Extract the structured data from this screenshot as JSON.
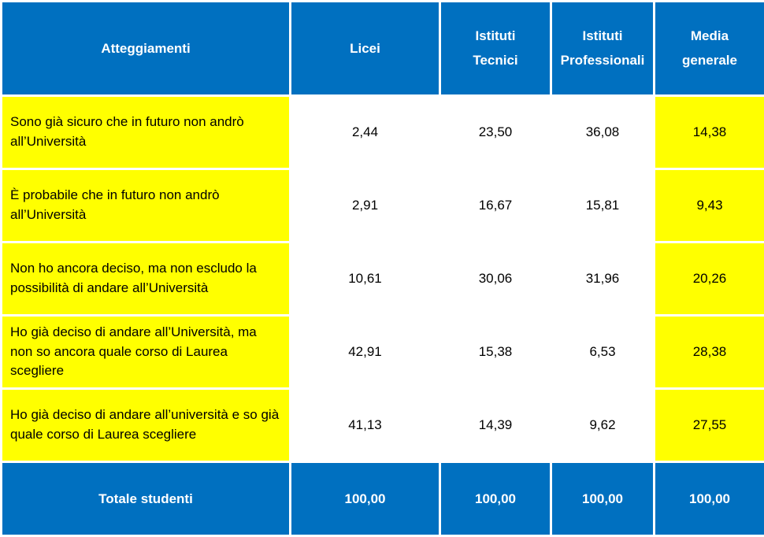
{
  "table": {
    "header": [
      "Atteggiamenti",
      "Licei",
      "Istituti Tecnici",
      "Istituti Professionali",
      "Media generale"
    ],
    "rows": [
      [
        "Sono già sicuro che in futuro non andrò all’Università",
        "2,44",
        "23,50",
        "36,08",
        "14,38"
      ],
      [
        "È probabile che in futuro non andrò all’Università",
        "2,91",
        "16,67",
        "15,81",
        "9,43"
      ],
      [
        "Non ho ancora deciso, ma non escludo la possibilità di andare all’Università",
        "10,61",
        "30,06",
        "31,96",
        "20,26"
      ],
      [
        "Ho già deciso di andare all’Università, ma non so ancora quale corso di Laurea scegliere",
        "42,91",
        "15,38",
        "6,53",
        "28,38"
      ],
      [
        "Ho già deciso di andare all’università e so già quale corso di Laurea scegliere",
        "41,13",
        "14,39",
        "9,62",
        "27,55"
      ]
    ],
    "footer": [
      "Totale studenti",
      "100,00",
      "100,00",
      "100,00",
      "100,00"
    ]
  }
}
